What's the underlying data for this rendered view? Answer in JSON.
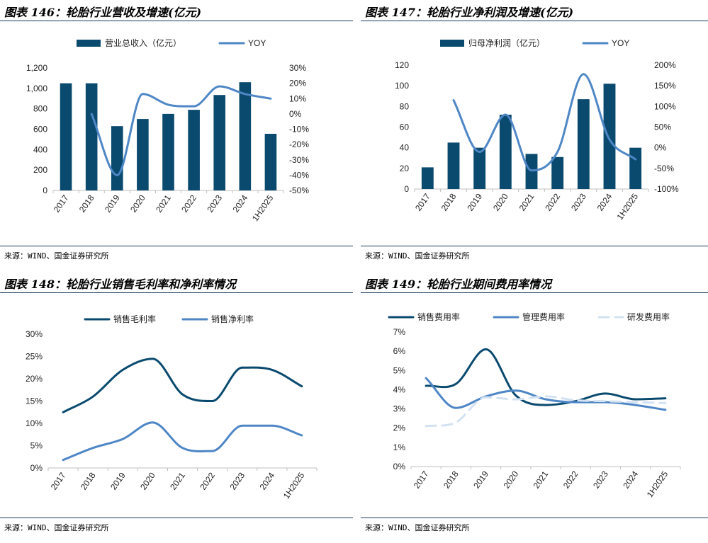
{
  "source_text": "来源：WIND、国金证券研究所",
  "colors": {
    "dark": "#0b4a6f",
    "mid": "#4e86c6",
    "light": "#d3e2f2",
    "rule": "#1a3a5c"
  },
  "chart_data": [
    {
      "type": "bar+line",
      "title": "图表 146：轮胎行业营收及增速(亿元)",
      "categories": [
        "2017",
        "2018",
        "2019",
        "2020",
        "2021",
        "2022",
        "2023",
        "2024",
        "1H2025"
      ],
      "series": [
        {
          "name": "营业总收入（亿元）",
          "kind": "bar",
          "axis": "left",
          "values": [
            1050,
            1050,
            630,
            700,
            750,
            790,
            935,
            1060,
            555
          ]
        },
        {
          "name": "YOY",
          "kind": "line",
          "axis": "right",
          "values": [
            null,
            0,
            -40,
            13,
            6,
            5,
            18,
            13,
            10
          ]
        }
      ],
      "left_axis": {
        "min": 0,
        "max": 1200,
        "ticks": [
          0,
          200,
          400,
          600,
          800,
          1000,
          1200
        ],
        "labels": [
          "0",
          "200",
          "400",
          "600",
          "800",
          "1,000",
          "1,200"
        ]
      },
      "right_axis": {
        "min": -50,
        "max": 30,
        "ticks": [
          -50,
          -40,
          -30,
          -20,
          -10,
          0,
          10,
          20,
          30
        ],
        "labels": [
          "-50%",
          "-40%",
          "-30%",
          "-20%",
          "-10%",
          "0%",
          "10%",
          "20%",
          "30%"
        ]
      }
    },
    {
      "type": "bar+line",
      "title": "图表 147：轮胎行业净利润及增速(亿元)",
      "categories": [
        "2017",
        "2018",
        "2019",
        "2020",
        "2021",
        "2022",
        "2023",
        "2024",
        "1H2025"
      ],
      "series": [
        {
          "name": "归母净利润（亿元）",
          "kind": "bar",
          "axis": "left",
          "values": [
            21,
            45,
            40,
            72,
            34,
            31,
            87,
            102,
            40
          ]
        },
        {
          "name": "YOY",
          "kind": "line",
          "axis": "right",
          "values": [
            null,
            115,
            -10,
            80,
            -55,
            -10,
            178,
            20,
            -28
          ]
        }
      ],
      "left_axis": {
        "min": 0,
        "max": 120,
        "ticks": [
          0,
          20,
          40,
          60,
          80,
          100,
          120
        ],
        "labels": [
          "0",
          "20",
          "40",
          "60",
          "80",
          "100",
          "120"
        ]
      },
      "right_axis": {
        "min": -100,
        "max": 200,
        "ticks": [
          -100,
          -50,
          0,
          50,
          100,
          150,
          200
        ],
        "labels": [
          "-100%",
          "-50%",
          "0%",
          "50%",
          "100%",
          "150%",
          "200%"
        ]
      }
    },
    {
      "type": "line",
      "title": "图表 148：轮胎行业销售毛利率和净利率情况",
      "categories": [
        "2017",
        "2018",
        "2019",
        "2020",
        "2021",
        "2022",
        "2023",
        "2024",
        "1H2025"
      ],
      "series": [
        {
          "name": "销售毛利率",
          "values": [
            12.5,
            16,
            22,
            24.5,
            16.5,
            15,
            22.5,
            22,
            18.3
          ]
        },
        {
          "name": "销售净利率",
          "values": [
            1.8,
            4.5,
            6.5,
            10.2,
            4.5,
            3.8,
            9.5,
            9.5,
            7.3
          ]
        }
      ],
      "left_axis": {
        "min": 0,
        "max": 30,
        "ticks": [
          0,
          5,
          10,
          15,
          20,
          25,
          30
        ],
        "labels": [
          "0%",
          "5%",
          "10%",
          "15%",
          "20%",
          "25%",
          "30%"
        ]
      }
    },
    {
      "type": "line",
      "title": "图表 149：轮胎行业期间费用率情况",
      "categories": [
        "2017",
        "2018",
        "2019",
        "2020",
        "2021",
        "2022",
        "2023",
        "2024",
        "1H2025"
      ],
      "series": [
        {
          "name": "销售费用率",
          "values": [
            4.2,
            4.3,
            6.1,
            3.7,
            3.2,
            3.4,
            3.8,
            3.5,
            3.55
          ]
        },
        {
          "name": "管理费用率",
          "values": [
            4.6,
            3.05,
            3.65,
            3.95,
            3.5,
            3.35,
            3.35,
            3.2,
            2.95
          ]
        },
        {
          "name": "研发费用率",
          "values": [
            2.1,
            2.3,
            3.6,
            3.5,
            3.65,
            3.45,
            3.4,
            3.35,
            3.3
          ]
        }
      ],
      "left_axis": {
        "min": 0,
        "max": 7,
        "ticks": [
          0,
          1,
          2,
          3,
          4,
          5,
          6,
          7
        ],
        "labels": [
          "0%",
          "1%",
          "2%",
          "3%",
          "4%",
          "5%",
          "6%",
          "7%"
        ]
      }
    }
  ]
}
